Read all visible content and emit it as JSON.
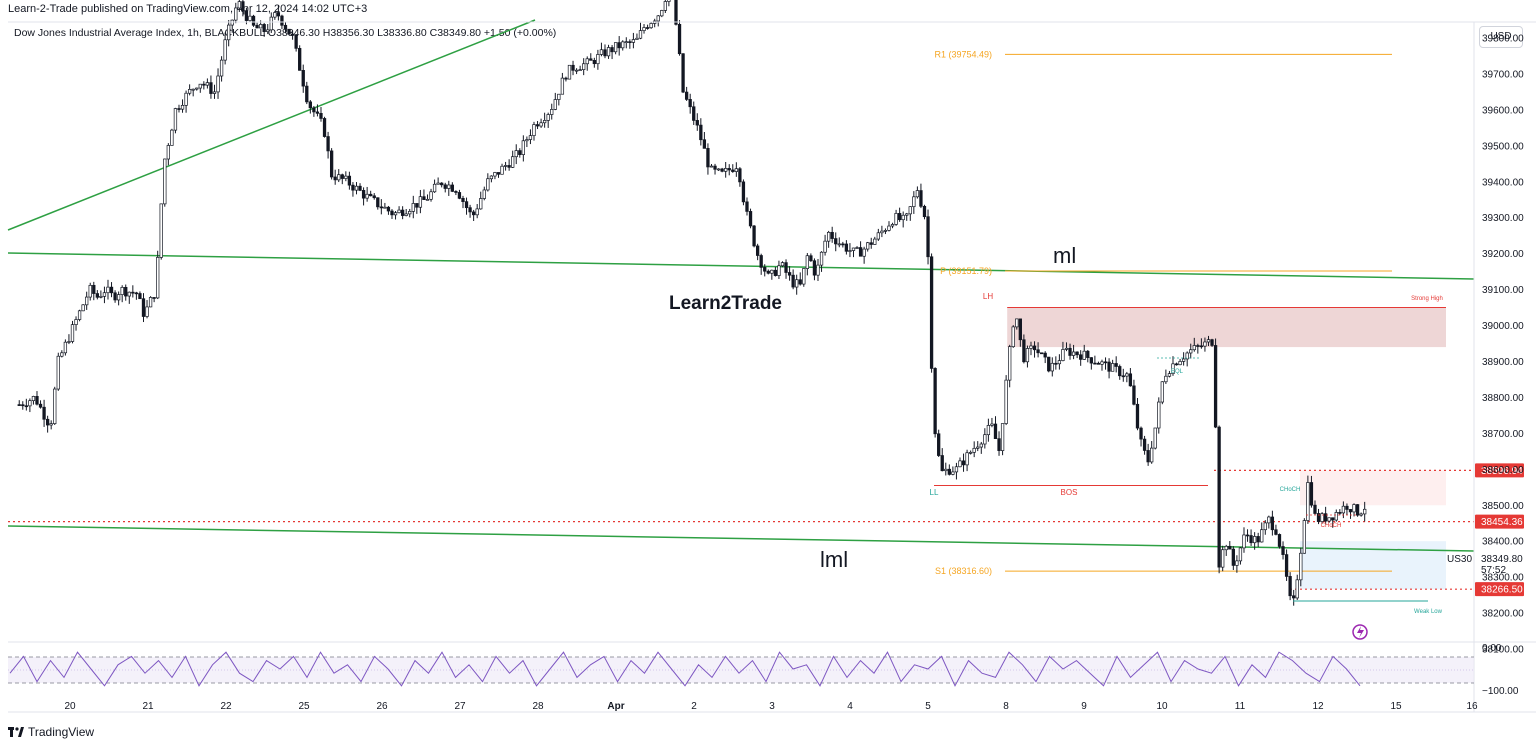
{
  "header": {
    "publisher": "Learn-2-Trade published on TradingView.com, Apr 12, 2024 14:02 UTC+3",
    "symbol_line": "Dow Jones Industrial Average Index, 1h, BLACKBULL  O38346.30  H38356.30  L38336.80  C38349.80  +1.50 (+0.00%)",
    "currency": "USD"
  },
  "footer": {
    "brand": "TradingView"
  },
  "watermark": "Learn2Trade",
  "colors": {
    "candle": "#131722",
    "trendline": "#2ea043",
    "pivot": "#f5a623",
    "red_dotted": "#e53935",
    "zone_fill": "#e0b4b4",
    "rsi_line": "#7e57c2",
    "rsi_band": "#ede7f6"
  },
  "chart_data": {
    "type": "candlestick",
    "x_tick_labels": [
      "20",
      "21",
      "22",
      "25",
      "26",
      "27",
      "28",
      "Apr",
      "2",
      "3",
      "4",
      "5",
      "8",
      "9",
      "10",
      "11",
      "12",
      "15",
      "16"
    ],
    "ylim": [
      38050,
      39850
    ],
    "y_ticks": [
      39800,
      39700,
      39600,
      39500,
      39400,
      39300,
      39200,
      39100,
      39000,
      38900,
      38800,
      38700,
      38600,
      38500,
      38400,
      38300,
      38200,
      38100
    ],
    "y_tick_labels": [
      "39800.00",
      "39700.00",
      "39600.00",
      "39500.00",
      "39400.00",
      "39300.00",
      "39200.00",
      "39100.00",
      "39000.00",
      "38900.00",
      "38800.00",
      "38700.00",
      "38600.00",
      "38500.00",
      "38400.00",
      "38300.00",
      "38200.00",
      "38100.00"
    ],
    "close_path": [
      [
        0,
        38780
      ],
      [
        0.2,
        38800
      ],
      [
        0.4,
        38720
      ],
      [
        0.5,
        38900
      ],
      [
        0.7,
        39000
      ],
      [
        0.9,
        39100
      ],
      [
        1.0,
        39080
      ],
      [
        1.1,
        39100
      ],
      [
        1.2,
        39080
      ],
      [
        1.3,
        39100
      ],
      [
        1.5,
        39090
      ],
      [
        1.6,
        39030
      ],
      [
        1.75,
        39100
      ],
      [
        1.85,
        39450
      ],
      [
        2.0,
        39600
      ],
      [
        2.1,
        39630
      ],
      [
        2.3,
        39680
      ],
      [
        2.5,
        39650
      ],
      [
        2.65,
        39800
      ],
      [
        2.8,
        39900
      ],
      [
        3.0,
        39830
      ],
      [
        3.15,
        39820
      ],
      [
        3.3,
        39870
      ],
      [
        3.5,
        39800
      ],
      [
        3.7,
        39620
      ],
      [
        3.9,
        39550
      ],
      [
        4.0,
        39420
      ],
      [
        4.2,
        39400
      ],
      [
        4.5,
        39350
      ],
      [
        4.8,
        39310
      ],
      [
        5.0,
        39330
      ],
      [
        5.2,
        39350
      ],
      [
        5.4,
        39400
      ],
      [
        5.6,
        39380
      ],
      [
        5.8,
        39300
      ],
      [
        6.0,
        39400
      ],
      [
        6.2,
        39440
      ],
      [
        6.4,
        39480
      ],
      [
        6.6,
        39560
      ],
      [
        6.8,
        39600
      ],
      [
        7.0,
        39700
      ],
      [
        7.1,
        39720
      ],
      [
        7.3,
        39730
      ],
      [
        7.5,
        39760
      ],
      [
        7.7,
        39780
      ],
      [
        7.9,
        39790
      ],
      [
        8.0,
        39830
      ],
      [
        8.2,
        39870
      ],
      [
        8.35,
        39960
      ],
      [
        8.5,
        39650
      ],
      [
        8.7,
        39540
      ],
      [
        8.85,
        39430
      ],
      [
        9.0,
        39420
      ],
      [
        9.2,
        39450
      ],
      [
        9.3,
        39320
      ],
      [
        9.45,
        39200
      ],
      [
        9.6,
        39130
      ],
      [
        9.75,
        39170
      ],
      [
        9.9,
        39120
      ],
      [
        10.0,
        39110
      ],
      [
        10.1,
        39200
      ],
      [
        10.2,
        39140
      ],
      [
        10.35,
        39260
      ],
      [
        10.5,
        39230
      ],
      [
        10.7,
        39200
      ],
      [
        10.8,
        39210
      ],
      [
        11.0,
        39250
      ],
      [
        11.2,
        39300
      ],
      [
        11.35,
        39290
      ],
      [
        11.5,
        39380
      ],
      [
        11.6,
        39300
      ],
      [
        11.65,
        39150
      ],
      [
        11.7,
        38750
      ],
      [
        11.8,
        38590
      ],
      [
        11.9,
        38600
      ],
      [
        12.0,
        38600
      ],
      [
        12.15,
        38640
      ],
      [
        12.3,
        38680
      ],
      [
        12.45,
        38720
      ],
      [
        12.55,
        38650
      ],
      [
        12.65,
        38870
      ],
      [
        12.75,
        39050
      ],
      [
        12.85,
        38910
      ],
      [
        13.0,
        38940
      ],
      [
        13.2,
        38880
      ],
      [
        13.4,
        38930
      ],
      [
        13.6,
        38920
      ],
      [
        13.8,
        38900
      ],
      [
        14.0,
        38880
      ],
      [
        14.2,
        38860
      ],
      [
        14.35,
        38680
      ],
      [
        14.45,
        38620
      ],
      [
        14.55,
        38720
      ],
      [
        14.65,
        38860
      ],
      [
        14.8,
        38900
      ],
      [
        15.0,
        38930
      ],
      [
        15.2,
        38950
      ],
      [
        15.3,
        38960
      ],
      [
        15.35,
        38330
      ],
      [
        15.45,
        38400
      ],
      [
        15.55,
        38330
      ],
      [
        15.7,
        38420
      ],
      [
        15.85,
        38400
      ],
      [
        16.0,
        38460
      ],
      [
        16.1,
        38430
      ],
      [
        16.2,
        38330
      ],
      [
        16.3,
        38200
      ],
      [
        16.4,
        38360
      ],
      [
        16.5,
        38560
      ],
      [
        16.6,
        38460
      ],
      [
        16.8,
        38470
      ],
      [
        17.0,
        38500
      ],
      [
        17.15,
        38480
      ],
      [
        17.3,
        38510
      ],
      [
        17.45,
        38349.8
      ]
    ],
    "levels": [
      {
        "label": "R1 (39754.49)",
        "value": 39754.49,
        "kind": "pivot"
      },
      {
        "label": "P (39151.79)",
        "value": 39151.79,
        "kind": "pivot"
      },
      {
        "label": "S1 (38316.60)",
        "value": 38316.6,
        "kind": "pivot"
      }
    ],
    "price_tags": [
      {
        "text": "38596.94",
        "value": 38596.94
      },
      {
        "text": "38454.36",
        "value": 38454.36
      },
      {
        "text": "38266.50",
        "value": 38266.5
      }
    ],
    "current_price": {
      "symbol": "US30",
      "price": "38349.80",
      "countdown": "57:52",
      "value": 38349.8
    },
    "annotations": {
      "ml": "ml",
      "lml": "lml",
      "lh": "LH",
      "ll": "LL",
      "bos": "BOS",
      "eql": "EQL",
      "strong_high": "Strong High",
      "weak_low": "Weak Low",
      "choch_top": "CHoCH",
      "choch_bottom": "CHoCH"
    },
    "zone": {
      "top": 39050,
      "bottom": 38940,
      "x_start": 12.65
    },
    "rsi": {
      "ticks": [
        "0.00",
        "−100.00"
      ],
      "values": [
        -60,
        -20,
        -80,
        -30,
        -70,
        -10,
        -50,
        -90,
        -40,
        -20,
        -60,
        -30,
        -70,
        -20,
        -90,
        -40,
        -10,
        -60,
        -80,
        -30,
        -50,
        -20,
        -70,
        -10,
        -60,
        -40,
        -80,
        -20,
        -50,
        -90,
        -30,
        -60,
        -10,
        -70,
        -40,
        -80,
        -20,
        -60,
        -30,
        -90,
        -50,
        -10,
        -70,
        -40,
        -20,
        -80,
        -30,
        -60,
        -10,
        -50,
        -90,
        -40,
        -70,
        -20,
        -60,
        -30,
        -80,
        -10,
        -50,
        -40,
        -90,
        -20,
        -70,
        -30,
        -60,
        -10,
        -80,
        -40,
        -50,
        -20,
        -90,
        -30,
        -60,
        -70,
        -10,
        -40,
        -80,
        -20,
        -50,
        -30,
        -60,
        -90,
        -20,
        -70,
        -40,
        -10,
        -80,
        -30,
        -50,
        -60,
        -20,
        -90,
        -40,
        -70,
        -10,
        -30,
        -60,
        -80,
        -20,
        -50,
        -90
      ]
    }
  }
}
